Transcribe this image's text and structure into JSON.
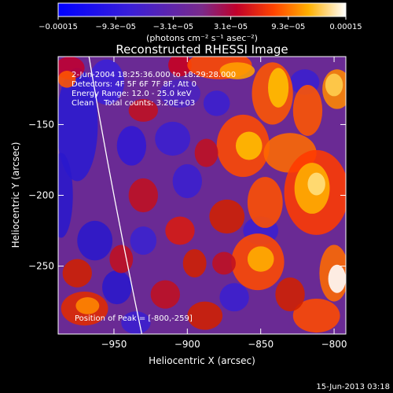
{
  "chart_data": {
    "type": "heatmap",
    "title": "Reconstructed RHESSI Image",
    "xlabel": "Heliocentric X (arcsec)",
    "ylabel": "Heliocentric Y (arcsec)",
    "xlim": [
      -988,
      -792
    ],
    "ylim": [
      -298,
      -102
    ],
    "xticks": [
      -950,
      -900,
      -850,
      -800
    ],
    "xtick_labels": [
      "−950",
      "−900",
      "−850",
      "−800"
    ],
    "yticks": [
      -150,
      -200,
      -250
    ],
    "ytick_labels": [
      "−150",
      "−200",
      "−250"
    ],
    "colorbar": {
      "range": [
        -0.00015,
        0.00015
      ],
      "tick_labels": [
        "−0.00015",
        "−9.3e−05",
        "−3.1e−05",
        "3.1e−05",
        "9.3e−05",
        "0.00015"
      ],
      "unit_label": "(photons cm⁻² s⁻¹ asec⁻²)"
    },
    "annotations": [
      "2-Jun-2004 18:25:36.000 to 18:29:28.000",
      "Detectors: 4F 5F 6F 7F 8F, Att 0",
      "Energy Range: 12.0 - 25.0 keV",
      "Clean    Total counts: 3.20E+03"
    ],
    "peak_label": "Position of Peak = [-800,-259]",
    "peak_position": [
      -800,
      -259
    ],
    "limb_curve": [
      [
        -967,
        -102
      ],
      [
        -950,
        -200
      ],
      [
        -931,
        -298
      ]
    ],
    "colors": {
      "negative": "#0000ff",
      "zero": "#6a2a94",
      "positive_high": "#ffffff",
      "limb": "#ffffff"
    }
  },
  "footer": {
    "date": "15-Jun-2013 03:18"
  }
}
